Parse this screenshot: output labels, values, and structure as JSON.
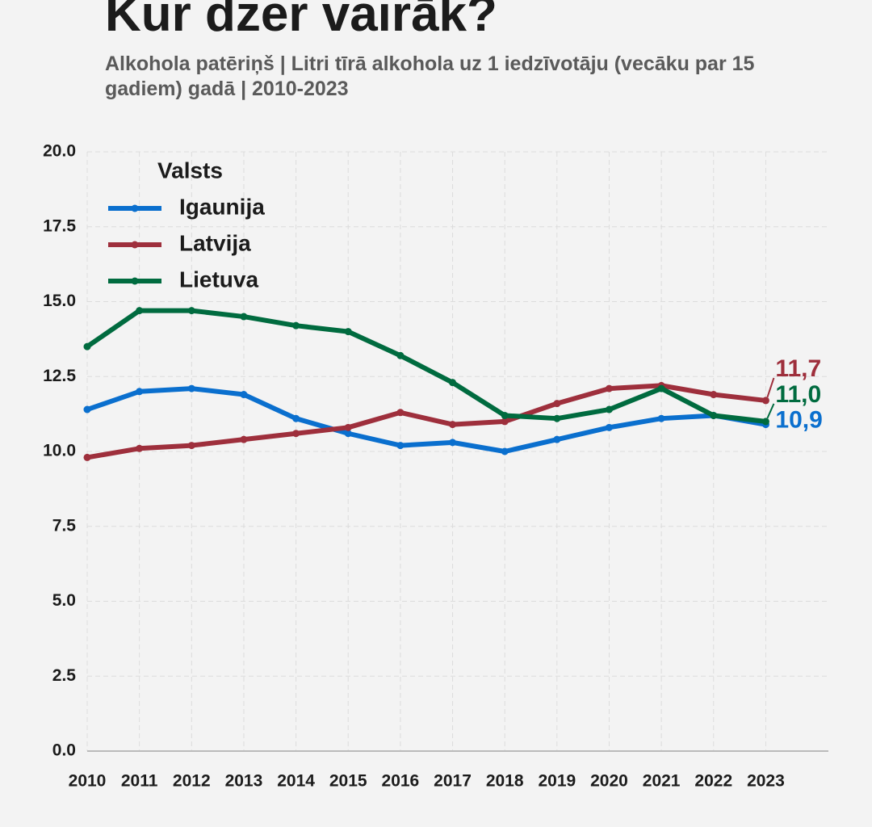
{
  "chart_data": {
    "type": "line",
    "title": "Kur dzer vairāk?",
    "subtitle": "Alkohola patēriņš | Litri tīrā alkohola uz 1 iedzīvotāju (vecāku par 15 gadiem) gadā | 2010-2023",
    "legend_title": "Valsts",
    "legend": "upper left",
    "grid": true,
    "x": [
      2010,
      2011,
      2012,
      2013,
      2014,
      2015,
      2016,
      2017,
      2018,
      2019,
      2020,
      2021,
      2022,
      2023
    ],
    "xlim": [
      2010,
      2024.2
    ],
    "xticks": [
      2010,
      2011,
      2012,
      2013,
      2014,
      2015,
      2016,
      2017,
      2018,
      2019,
      2020,
      2021,
      2022,
      2023
    ],
    "ylim": [
      0,
      20
    ],
    "yticks": [
      {
        "value": 0,
        "label": "0.0"
      },
      {
        "value": 2.5,
        "label": "2.5"
      },
      {
        "value": 5,
        "label": "5.0"
      },
      {
        "value": 7.5,
        "label": "7.5"
      },
      {
        "value": 10,
        "label": "10.0"
      },
      {
        "value": 12.5,
        "label": "12.5"
      },
      {
        "value": 15,
        "label": "15.0"
      },
      {
        "value": 17.5,
        "label": "17.5"
      },
      {
        "value": 20,
        "label": "20.0"
      }
    ],
    "series": [
      {
        "name": "Igaunija",
        "color": "#0a6fce",
        "values": [
          11.4,
          12.0,
          12.1,
          11.9,
          11.1,
          10.6,
          10.2,
          10.3,
          10.0,
          10.4,
          10.8,
          11.1,
          11.2,
          10.9
        ],
        "value_labels": [
          null,
          null,
          null,
          null,
          null,
          null,
          null,
          null,
          null,
          null,
          null,
          null,
          null,
          "10,9"
        ]
      },
      {
        "name": "Latvija",
        "color": "#9e2f3c",
        "values": [
          9.8,
          10.1,
          10.2,
          10.4,
          10.6,
          10.8,
          11.3,
          10.9,
          11.0,
          11.6,
          12.1,
          12.2,
          11.9,
          11.7
        ],
        "value_labels": [
          null,
          null,
          null,
          null,
          null,
          null,
          null,
          null,
          null,
          null,
          null,
          null,
          null,
          "11,7"
        ]
      },
      {
        "name": "Lietuva",
        "color": "#006b3f",
        "values": [
          13.5,
          14.7,
          14.7,
          14.5,
          14.2,
          14.0,
          13.2,
          12.3,
          11.2,
          11.1,
          11.4,
          12.1,
          11.2,
          11.0
        ],
        "value_labels": [
          null,
          null,
          null,
          null,
          null,
          null,
          null,
          null,
          null,
          null,
          null,
          null,
          null,
          "11,0"
        ]
      }
    ]
  }
}
